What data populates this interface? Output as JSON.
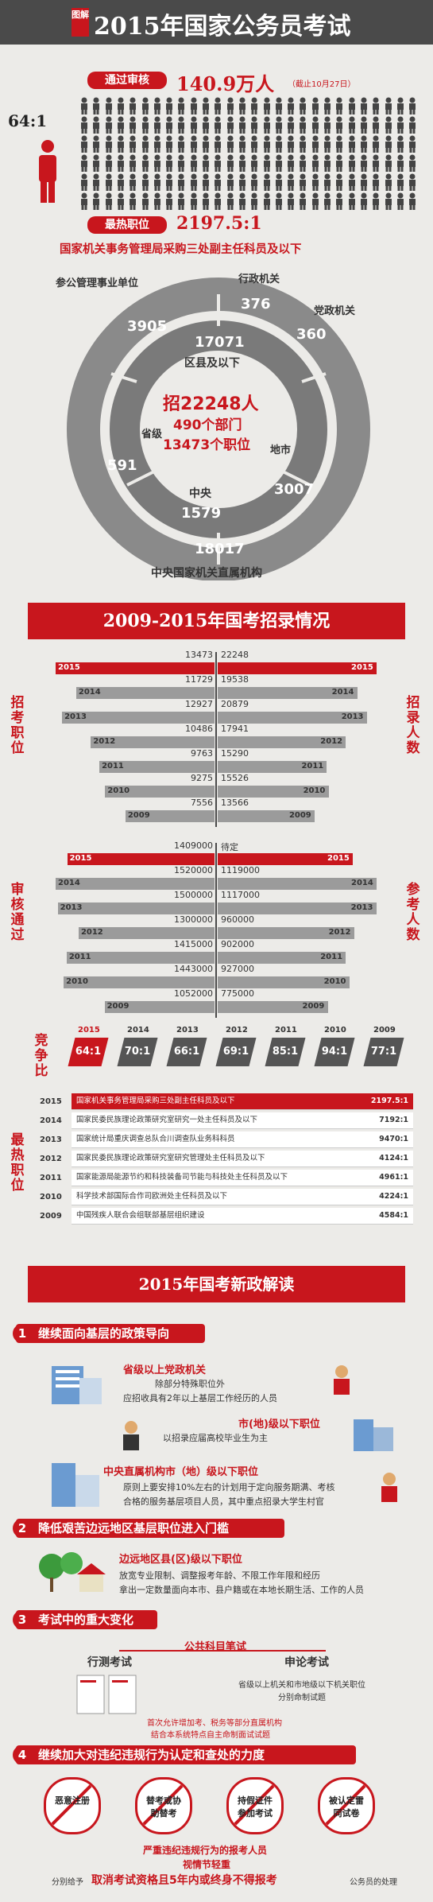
{
  "header": {
    "tag": "图解",
    "title": "2015年国家公务员考试"
  },
  "passed": {
    "label": "通过审核",
    "value": "140.9万人",
    "note": "（截止10月27日）",
    "ratio": "64:1"
  },
  "hottest": {
    "label": "最热职位",
    "value": "2197.5:1",
    "position": "国家机关事务管理局采购三处副主任科员及以下"
  },
  "donut": {
    "labels": {
      "participating": "参公管理事业单位",
      "admin": "行政机关",
      "party": "党政机关",
      "county": "区县及以下",
      "city": "地市",
      "central": "中央",
      "provincial": "省级",
      "direct": "中央国家机关直属机构"
    },
    "values": {
      "participating": "3905",
      "admin": "376",
      "party": "360",
      "county": "17071",
      "city": "3007",
      "central": "1579",
      "provincial": "591",
      "direct": "18017"
    },
    "center": {
      "line1": "招22248人",
      "line2": "490个部门",
      "line3": "13473个职位"
    }
  },
  "section2": {
    "title": "2009-2015年国考招录情况"
  },
  "years": [
    "2015",
    "2014",
    "2013",
    "2012",
    "2011",
    "2010",
    "2009"
  ],
  "positions": {
    "label": "招考职位",
    "values": [
      13473,
      11729,
      12927,
      10486,
      9763,
      9275,
      7556
    ]
  },
  "recruits": {
    "label": "招录人数",
    "values": [
      22248,
      19538,
      20879,
      17941,
      15290,
      15526,
      13566
    ]
  },
  "reviewed": {
    "label": "审核通过",
    "values": [
      1409000,
      1520000,
      1500000,
      1300000,
      1415000,
      1443000,
      1052000
    ]
  },
  "examinees": {
    "label": "参考人数",
    "first": "待定",
    "values": [
      1119000,
      1117000,
      960000,
      902000,
      927000,
      775000
    ]
  },
  "competition": {
    "label": "竞争比",
    "ratios": [
      "64:1",
      "70:1",
      "66:1",
      "69:1",
      "85:1",
      "94:1",
      "77:1"
    ]
  },
  "hottest_table": {
    "label": "最热职位",
    "rows": [
      {
        "year": "2015",
        "title": "国家机关事务管理局采购三处副主任科员及以下",
        "ratio": "2197.5:1"
      },
      {
        "year": "2014",
        "title": "国家民委民族理论政策研究室研究一处主任科员及以下",
        "ratio": "7192:1"
      },
      {
        "year": "2013",
        "title": "国家统计局重庆调查总队合川调查队业务科科员",
        "ratio": "9470:1"
      },
      {
        "year": "2012",
        "title": "国家民委民族理论政策研究室研究管理处主任科员及以下",
        "ratio": "4124:1"
      },
      {
        "year": "2011",
        "title": "国家能源局能源节约和科技装备司节能与科技处主任科员及以下",
        "ratio": "4961:1"
      },
      {
        "year": "2010",
        "title": "科学技术部国际合作司欧洲处主任科员及以下",
        "ratio": "4224:1"
      },
      {
        "year": "2009",
        "title": "中国残疾人联合会组联部基层组织建设",
        "ratio": "4584:1"
      }
    ]
  },
  "section3": {
    "title": "2015年国考新政解读"
  },
  "p1": {
    "num": "1",
    "title": "继续面向基层的政策导向",
    "a_title": "省级以上党政机关",
    "a_l1": "除部分特殊职位外",
    "a_l2": "应招收具有2年以上基层工作经历的人员",
    "b_title": "市(地)级以下职位",
    "b_l1": "以招录应届高校毕业生为主",
    "c_title": "中央直属机构市（地）级以下职位",
    "c_l1": "原则上要安排10%左右的计划用于定向服务期满、考核",
    "c_l2": "合格的服务基层项目人员，其中重点招录大学生村官"
  },
  "p2": {
    "num": "2",
    "title": "降低艰苦边远地区基层职位进入门槛",
    "a_title": "边远地区县(区)级以下职位",
    "a_l1": "放宽专业限制、调整报考年龄、不限工作年限和经历",
    "a_l2": "拿出一定数量面向本市、县户籍或在本地长期生活、工作的人员"
  },
  "p3": {
    "num": "3",
    "title": "考试中的重大变化",
    "common": "公共科目笔试",
    "test1": "行测考试",
    "test2": "申论考试",
    "note1": "省级以上机关和市地级以下机关职位",
    "note2": "分别命制试题",
    "note3": "首次允许增加考、税务等部分直属机构",
    "note4": "结合本系统特点自主命制面试试题"
  },
  "p4": {
    "num": "4",
    "title": "继续加大对违纪违规行为认定和查处的力度",
    "stamps": [
      "恶意注册",
      "替考或协助替考",
      "持假证件参加考试",
      "被认定雷同试卷"
    ],
    "l1": "严重违纪违规行为的报考人员",
    "l2": "视情节轻重",
    "l3a": "分别给予",
    "l3b": "取消考试资格且5年内或终身不得报考",
    "l3c": "公务员的处理"
  },
  "colors": {
    "red": "#c8161d",
    "gray": "#9b9b9b",
    "dark": "#4a4a4a"
  }
}
